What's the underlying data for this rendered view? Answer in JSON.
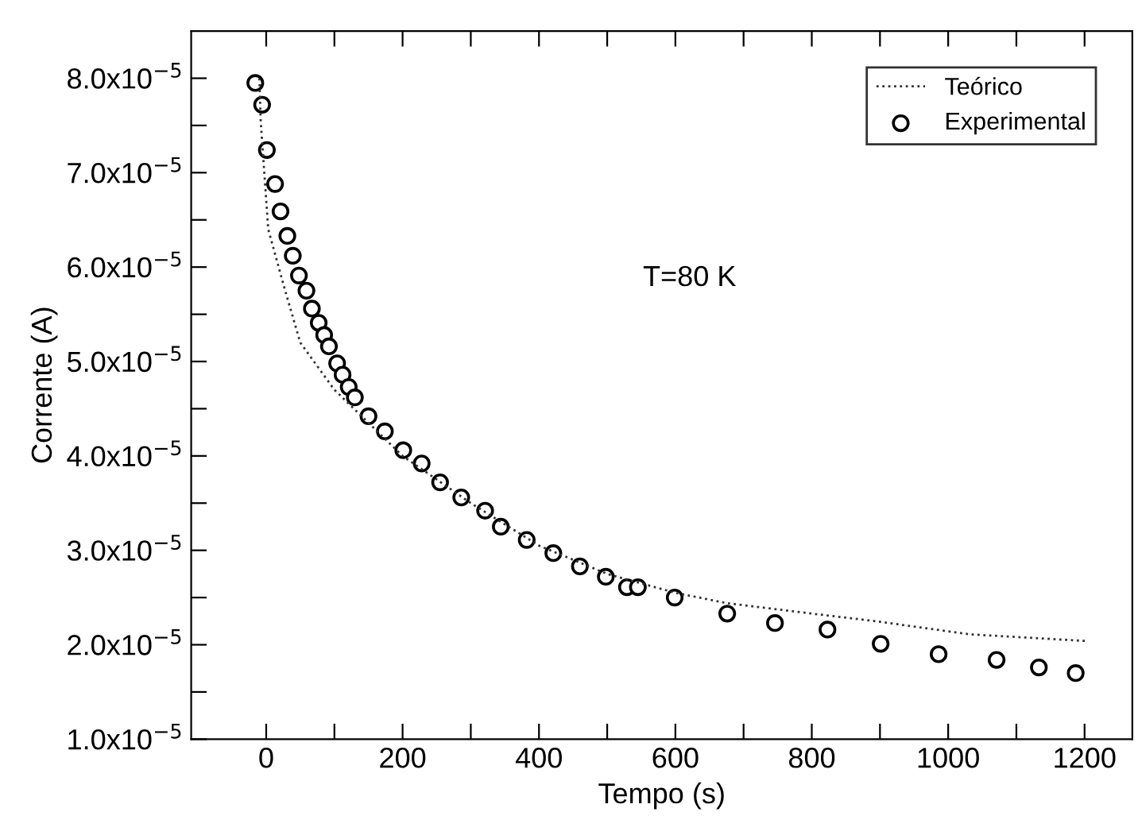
{
  "chart_data": {
    "type": "scatter",
    "xlabel": "Tempo (s)",
    "ylabel": "Corrente (A)",
    "annotations": [
      "T=80 K"
    ],
    "xlim": [
      -110,
      1270
    ],
    "ylim": [
      1e-05,
      8.5e-05
    ],
    "xticks": [
      0,
      {
        "value": 100,
        "label": null
      },
      200,
      {
        "value": 300,
        "label": null
      },
      400,
      {
        "value": 500,
        "label": null
      },
      600,
      {
        "value": 700,
        "label": null
      },
      800,
      {
        "value": 900,
        "label": null
      },
      1000,
      {
        "value": 1100,
        "label": null
      },
      1200
    ],
    "yticks": [
      {
        "value": 1e-05,
        "label": "1.0x10$^{−5}$"
      },
      {
        "value": 1.5e-05,
        "label": null
      },
      {
        "value": 2e-05,
        "label": "2.0x10$^{−5}$"
      },
      {
        "value": 2.5e-05,
        "label": null
      },
      {
        "value": 3e-05,
        "label": "3.0x10$^{−5}$"
      },
      {
        "value": 3.5e-05,
        "label": null
      },
      {
        "value": 4e-05,
        "label": "4.0x10$^{−5}$"
      },
      {
        "value": 4.5e-05,
        "label": null
      },
      {
        "value": 5e-05,
        "label": "5.0x10$^{−5}$"
      },
      {
        "value": 5.5e-05,
        "label": null
      },
      {
        "value": 6e-05,
        "label": "6.0x10$^{−5}$"
      },
      {
        "value": 6.5e-05,
        "label": null
      },
      {
        "value": 7e-05,
        "label": "7.0x10$^{−5}$"
      },
      {
        "value": 7.5e-05,
        "label": null
      },
      {
        "value": 8e-05,
        "label": "8.0x10$^{−5}$"
      }
    ],
    "grid": false,
    "legend": "top right",
    "series": [
      {
        "name": "Teórico",
        "type": "line",
        "color": "#333333",
        "line_style": "dotted",
        "marker": "none",
        "x": [
          -10,
          -8,
          3,
          27,
          50,
          100,
          200,
          300,
          400,
          500,
          600,
          676,
          800,
          893,
          1032,
          1202
        ],
        "values": [
          8e-05,
          7.54e-05,
          6.4e-05,
          5.77e-05,
          5.2e-05,
          4.7e-05,
          4e-05,
          3.5e-05,
          3.05e-05,
          2.75e-05,
          2.55e-05,
          2.44e-05,
          2.33e-05,
          2.25e-05,
          2.11e-05,
          2.04e-05
        ]
      },
      {
        "name": "Experimental",
        "color": "#000000",
        "marker": "circle",
        "x": [
          -16,
          -6,
          1,
          13,
          21,
          31,
          39,
          48,
          59,
          67,
          77,
          85,
          92,
          104,
          112,
          121,
          130,
          150,
          174,
          201,
          228,
          255,
          286,
          321,
          344,
          382,
          421,
          460,
          498,
          529,
          545,
          599,
          676,
          746,
          823,
          901,
          986,
          1071,
          1133,
          1187
        ],
        "values": [
          7.95e-05,
          7.72e-05,
          7.24e-05,
          6.88e-05,
          6.59e-05,
          6.33e-05,
          6.12e-05,
          5.91e-05,
          5.75e-05,
          5.56e-05,
          5.41e-05,
          5.28e-05,
          5.16e-05,
          4.98e-05,
          4.86e-05,
          4.73e-05,
          4.62e-05,
          4.42e-05,
          4.26e-05,
          4.06e-05,
          3.92e-05,
          3.72e-05,
          3.56e-05,
          3.42e-05,
          3.25e-05,
          3.11e-05,
          2.97e-05,
          2.83e-05,
          2.72e-05,
          2.61e-05,
          2.61e-05,
          2.5e-05,
          2.33e-05,
          2.23e-05,
          2.16e-05,
          2.01e-05,
          1.9e-05,
          1.84e-05,
          1.76e-05,
          1.7e-05
        ]
      }
    ]
  }
}
